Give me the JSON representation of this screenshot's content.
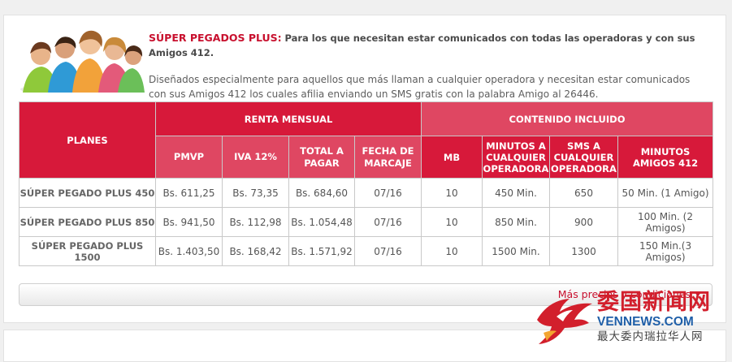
{
  "intro": {
    "title": "SÚPER PEGADOS PLUS:",
    "lead": "Para los que necesitan estar comunicados con todas las operadoras y con sus Amigos 412.",
    "description": "Diseñados especialmente para aquellos que más llaman a cualquier operadora y necesitan estar comunicados con sus Amigos 412 los cuales afilia enviando un SMS gratis con la palabra Amigo al 26446."
  },
  "table": {
    "header_planes": "PLANES",
    "header_renta": "RENTA MENSUAL",
    "header_contenido": "CONTENIDO INCLUIDO",
    "columns": {
      "pmvp": "PMVP",
      "iva": "IVA 12%",
      "total": "TOTAL A PAGAR",
      "fecha": "FECHA DE MARCAJE",
      "mb": "MB",
      "minutos": "MINUTOS A CUALQUIER OPERADORA",
      "sms": "SMS A CUALQUIER OPERADORA",
      "amigos": "MINUTOS AMIGOS 412"
    },
    "rows": [
      {
        "plan": "SÚPER PEGADO PLUS 450",
        "pmvp": "Bs. 611,25",
        "iva": "Bs. 73,35",
        "total": "Bs. 684,60",
        "fecha": "07/16",
        "mb": "10",
        "minutos": "450 Min.",
        "sms": "650",
        "amigos": "50 Min. (1 Amigo)"
      },
      {
        "plan": "SÚPER PEGADO PLUS 850",
        "pmvp": "Bs. 941,50",
        "iva": "Bs. 112,98",
        "total": "Bs. 1.054,48",
        "fecha": "07/16",
        "mb": "10",
        "minutos": "850 Min.",
        "sms": "900",
        "amigos": "100 Min. (2 Amigos)"
      },
      {
        "plan": "SÚPER PEGADO PLUS 1500",
        "pmvp": "Bs. 1.403,50",
        "iva": "Bs. 168,42",
        "total": "Bs. 1.571,92",
        "fecha": "07/16",
        "mb": "10",
        "minutos": "1500 Min.",
        "sms": "1300",
        "amigos": "150 Min.(3 Amigos)"
      }
    ]
  },
  "more": {
    "label": "Más precios y condiciones"
  },
  "watermark": {
    "chinese": "委国新闻网",
    "english": "VENNEWS.COM",
    "subtitle": "最大委内瑞拉华人网"
  },
  "colors": {
    "brand_red": "#d7193a",
    "header_pink": "#df4762",
    "link_red": "#c8102e",
    "watermark_blue": "#1f5fa8"
  },
  "icons": {
    "more_arrow": "chevron-down-icon",
    "watermark_logo": "bird-logo-icon"
  }
}
